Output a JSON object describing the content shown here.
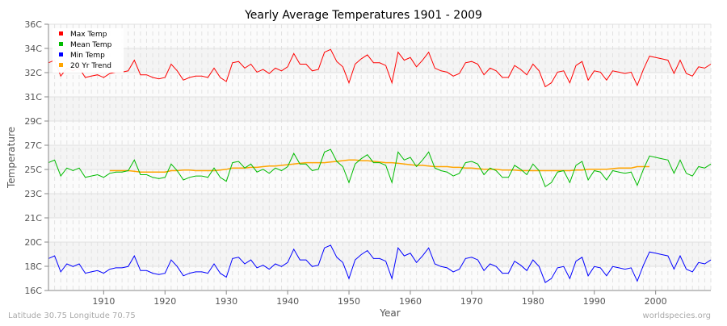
{
  "chart_data": {
    "type": "line",
    "title": "Yearly Average Temperatures 1901 - 2009",
    "xlabel": "Year",
    "ylabel": "Temperature",
    "xlim": [
      1901,
      2009
    ],
    "ylim": [
      16,
      36
    ],
    "x_ticks": [
      1910,
      1920,
      1930,
      1940,
      1950,
      1960,
      1970,
      1980,
      1990,
      2000
    ],
    "y_tick_labels": [
      "16C",
      "18C",
      "20C",
      "21C",
      "23C",
      "25C",
      "27C",
      "29C",
      "31C",
      "32C",
      "34C",
      "36C"
    ],
    "grid": true,
    "legend_position": "top-left",
    "x_start": 1901,
    "series": [
      {
        "name": "Max Temp",
        "color": "#ff0000",
        "start_year": 1901,
        "values": [
          33.1,
          33.3,
          32.1,
          32.7,
          32.5,
          32.7,
          32.0,
          32.1,
          32.2,
          32.0,
          32.3,
          32.4,
          32.4,
          32.5,
          33.3,
          32.2,
          32.2,
          32.0,
          31.9,
          32.0,
          33.0,
          32.5,
          31.8,
          32.0,
          32.1,
          32.1,
          32.0,
          32.7,
          32.0,
          31.7,
          33.1,
          33.2,
          32.7,
          33.0,
          32.4,
          32.6,
          32.3,
          32.7,
          32.5,
          32.8,
          33.8,
          33.0,
          33.0,
          32.5,
          32.6,
          33.9,
          34.1,
          33.2,
          32.8,
          31.6,
          33.0,
          33.4,
          33.7,
          33.1,
          33.1,
          32.9,
          31.6,
          33.9,
          33.3,
          33.5,
          32.8,
          33.3,
          33.9,
          32.7,
          32.5,
          32.4,
          32.1,
          32.3,
          33.1,
          33.2,
          33.0,
          32.2,
          32.7,
          32.5,
          32.0,
          32.0,
          32.9,
          32.6,
          32.2,
          33.0,
          32.5,
          31.3,
          31.6,
          32.4,
          32.5,
          31.6,
          32.9,
          33.2,
          31.8,
          32.5,
          32.4,
          31.8,
          32.5,
          32.4,
          32.3,
          32.4,
          31.4,
          32.6,
          33.6,
          33.5,
          33.4,
          33.3,
          32.3,
          33.3,
          32.3,
          32.1,
          32.8,
          32.7,
          33.0
        ]
      },
      {
        "name": "Mean Temp",
        "color": "#00bb00",
        "start_year": 1901,
        "values": [
          25.6,
          25.8,
          24.6,
          25.2,
          25.0,
          25.2,
          24.5,
          24.6,
          24.7,
          24.5,
          24.8,
          24.9,
          24.9,
          25.0,
          25.8,
          24.7,
          24.7,
          24.5,
          24.4,
          24.5,
          25.5,
          25.0,
          24.3,
          24.5,
          24.6,
          24.6,
          24.5,
          25.2,
          24.5,
          24.2,
          25.6,
          25.7,
          25.2,
          25.5,
          24.9,
          25.1,
          24.8,
          25.2,
          25.0,
          25.3,
          26.3,
          25.5,
          25.5,
          25.0,
          25.1,
          26.4,
          26.6,
          25.7,
          25.3,
          24.1,
          25.5,
          25.9,
          26.2,
          25.6,
          25.6,
          25.4,
          24.1,
          26.4,
          25.8,
          26.0,
          25.3,
          25.8,
          26.4,
          25.2,
          25.0,
          24.9,
          24.6,
          24.8,
          25.6,
          25.7,
          25.5,
          24.7,
          25.2,
          25.0,
          24.5,
          24.5,
          25.4,
          25.1,
          24.7,
          25.5,
          25.0,
          23.8,
          24.1,
          24.9,
          25.0,
          24.1,
          25.4,
          25.7,
          24.3,
          25.0,
          24.9,
          24.3,
          25.0,
          24.9,
          24.8,
          24.9,
          23.9,
          25.1,
          26.1,
          26.0,
          25.9,
          25.8,
          24.8,
          25.8,
          24.8,
          24.6,
          25.3,
          25.2,
          25.5
        ]
      },
      {
        "name": "Min Temp",
        "color": "#0000ff",
        "start_year": 1901,
        "values": [
          18.4,
          18.6,
          17.4,
          18.0,
          17.8,
          18.0,
          17.3,
          17.4,
          17.5,
          17.3,
          17.6,
          17.7,
          17.7,
          17.8,
          18.6,
          17.5,
          17.5,
          17.3,
          17.2,
          17.3,
          18.3,
          17.8,
          17.1,
          17.3,
          17.4,
          17.4,
          17.3,
          18.0,
          17.3,
          17.0,
          18.4,
          18.5,
          18.0,
          18.3,
          17.7,
          17.9,
          17.6,
          18.0,
          17.8,
          18.1,
          19.1,
          18.3,
          18.3,
          17.8,
          17.9,
          19.2,
          19.4,
          18.5,
          18.1,
          16.9,
          18.3,
          18.7,
          19.0,
          18.4,
          18.4,
          18.2,
          16.9,
          19.2,
          18.6,
          18.8,
          18.1,
          18.6,
          19.2,
          18.0,
          17.8,
          17.7,
          17.4,
          17.6,
          18.4,
          18.5,
          18.3,
          17.5,
          18.0,
          17.8,
          17.3,
          17.3,
          18.2,
          17.9,
          17.5,
          18.3,
          17.8,
          16.6,
          16.9,
          17.7,
          17.8,
          16.9,
          18.2,
          18.5,
          17.1,
          17.8,
          17.7,
          17.1,
          17.8,
          17.7,
          17.6,
          17.7,
          16.7,
          17.9,
          18.9,
          18.8,
          18.7,
          18.6,
          17.6,
          18.6,
          17.6,
          17.4,
          18.1,
          18.0,
          18.3
        ]
      },
      {
        "name": "20 Yr Trend",
        "color": "#ffa500",
        "start_year": 1911,
        "values": [
          25.0,
          25.0,
          25.0,
          25.0,
          24.95,
          24.9,
          24.9,
          24.9,
          24.9,
          24.9,
          25.0,
          25.0,
          25.05,
          25.05,
          25.0,
          25.0,
          25.0,
          25.0,
          25.05,
          25.1,
          25.2,
          25.2,
          25.2,
          25.25,
          25.25,
          25.3,
          25.35,
          25.35,
          25.4,
          25.45,
          25.5,
          25.55,
          25.6,
          25.6,
          25.6,
          25.6,
          25.65,
          25.7,
          25.75,
          25.8,
          25.8,
          25.75,
          25.75,
          25.7,
          25.65,
          25.6,
          25.6,
          25.55,
          25.5,
          25.45,
          25.4,
          25.4,
          25.35,
          25.3,
          25.3,
          25.3,
          25.25,
          25.25,
          25.2,
          25.2,
          25.15,
          25.1,
          25.1,
          25.1,
          25.05,
          25.05,
          25.05,
          25.0,
          25.0,
          25.0,
          25.0,
          25.0,
          25.0,
          25.0,
          25.0,
          25.0,
          25.05,
          25.05,
          25.1,
          25.1,
          25.1,
          25.1,
          25.15,
          25.2,
          25.2,
          25.2,
          25.3,
          25.3,
          25.3
        ]
      }
    ]
  },
  "footer": {
    "location": "Latitude 30.75 Longitude 70.75",
    "source": "worldspecies.org"
  }
}
